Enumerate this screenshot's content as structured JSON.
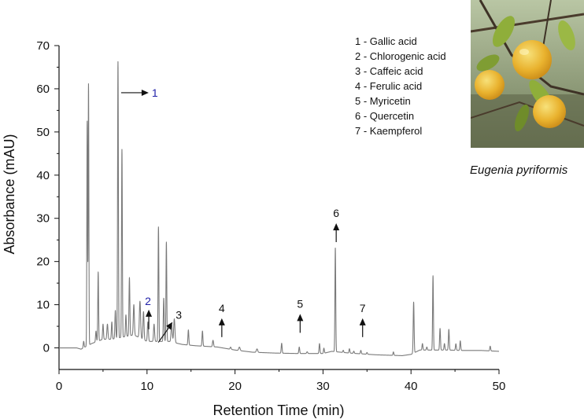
{
  "chart_data": {
    "type": "line",
    "xlabel": "Retention Time (min)",
    "ylabel": "Absorbance (mAU)",
    "xlim": [
      0,
      50
    ],
    "ylim": [
      -5,
      70
    ],
    "x_ticks": [
      0,
      10,
      20,
      30,
      40,
      50
    ],
    "y_ticks": [
      0,
      10,
      20,
      30,
      40,
      50,
      60,
      70
    ],
    "grid": false,
    "baseline": [
      [
        0,
        0
      ],
      [
        2.0,
        0
      ],
      [
        2.5,
        -0.3
      ],
      [
        3.7,
        1.0
      ],
      [
        5.0,
        2.0
      ],
      [
        6.0,
        2.0
      ],
      [
        8.5,
        3.0
      ],
      [
        10.0,
        1.5
      ],
      [
        12.5,
        1.5
      ],
      [
        14.0,
        0.8
      ],
      [
        15.5,
        0.5
      ],
      [
        18.0,
        0.2
      ],
      [
        20.0,
        -0.5
      ],
      [
        22.0,
        -1.0
      ],
      [
        24.5,
        -1.2
      ],
      [
        27.0,
        -1.3
      ],
      [
        30.0,
        -1.3
      ],
      [
        31.0,
        -0.8
      ],
      [
        33.0,
        -1.2
      ],
      [
        36.0,
        -1.6
      ],
      [
        39.0,
        -1.8
      ],
      [
        40.0,
        -1.5
      ],
      [
        41.0,
        -0.5
      ],
      [
        44.0,
        -0.5
      ],
      [
        46.0,
        -0.6
      ],
      [
        48.0,
        -0.6
      ],
      [
        50.0,
        -0.8
      ]
    ],
    "peaks": [
      {
        "x": 2.8,
        "y": 1.5,
        "w": 0.05
      },
      {
        "x": 3.2,
        "y": 52,
        "w": 0.04
      },
      {
        "x": 3.35,
        "y": 60.5,
        "w": 0.04
      },
      {
        "x": 4.2,
        "y": 2.5,
        "w": 0.05
      },
      {
        "x": 4.45,
        "y": 16,
        "w": 0.045
      },
      {
        "x": 5.0,
        "y": 3.5,
        "w": 0.05
      },
      {
        "x": 5.5,
        "y": 3.5,
        "w": 0.06
      },
      {
        "x": 6.0,
        "y": 4.0,
        "w": 0.05
      },
      {
        "x": 6.4,
        "y": 6.5,
        "w": 0.05
      },
      {
        "x": 6.7,
        "y": 64,
        "w": 0.045
      },
      {
        "x": 7.15,
        "y": 43.5,
        "w": 0.045
      },
      {
        "x": 7.6,
        "y": 5.0,
        "w": 0.05
      },
      {
        "x": 8.0,
        "y": 13.5,
        "w": 0.05
      },
      {
        "x": 8.5,
        "y": 7.0,
        "w": 0.06
      },
      {
        "x": 9.2,
        "y": 8.5,
        "w": 0.07
      },
      {
        "x": 9.6,
        "y": 6.5,
        "w": 0.06
      },
      {
        "x": 10.1,
        "y": 4.5,
        "w": 0.06
      },
      {
        "x": 10.8,
        "y": 4.0,
        "w": 0.06
      },
      {
        "x": 11.3,
        "y": 26.5,
        "w": 0.045
      },
      {
        "x": 11.9,
        "y": 10.0,
        "w": 0.05
      },
      {
        "x": 12.2,
        "y": 23,
        "w": 0.045
      },
      {
        "x": 12.8,
        "y": 4.0,
        "w": 0.07
      },
      {
        "x": 13.1,
        "y": 5.5,
        "w": 0.07
      },
      {
        "x": 14.7,
        "y": 3.5,
        "w": 0.05
      },
      {
        "x": 16.3,
        "y": 3.5,
        "w": 0.05
      },
      {
        "x": 17.5,
        "y": 1.5,
        "w": 0.06
      },
      {
        "x": 19.5,
        "y": 0.5,
        "w": 0.06
      },
      {
        "x": 20.5,
        "y": 0.8,
        "w": 0.08
      },
      {
        "x": 22.5,
        "y": 0.8,
        "w": 0.08
      },
      {
        "x": 25.3,
        "y": 2.3,
        "w": 0.05
      },
      {
        "x": 27.3,
        "y": 1.5,
        "w": 0.05
      },
      {
        "x": 28.2,
        "y": 0.4,
        "w": 0.06
      },
      {
        "x": 29.6,
        "y": 2.3,
        "w": 0.05
      },
      {
        "x": 30.1,
        "y": 1.2,
        "w": 0.05
      },
      {
        "x": 31.4,
        "y": 24,
        "w": 0.045
      },
      {
        "x": 32.3,
        "y": 0.5,
        "w": 0.05
      },
      {
        "x": 33.0,
        "y": 1.0,
        "w": 0.05
      },
      {
        "x": 33.5,
        "y": 0.5,
        "w": 0.05
      },
      {
        "x": 34.3,
        "y": 0.8,
        "w": 0.05
      },
      {
        "x": 35.0,
        "y": 0.4,
        "w": 0.05
      },
      {
        "x": 38.0,
        "y": 0.8,
        "w": 0.05
      },
      {
        "x": 40.3,
        "y": 11.8,
        "w": 0.05
      },
      {
        "x": 41.3,
        "y": 1.5,
        "w": 0.05
      },
      {
        "x": 41.8,
        "y": 0.7,
        "w": 0.05
      },
      {
        "x": 42.5,
        "y": 17.2,
        "w": 0.045
      },
      {
        "x": 43.3,
        "y": 5.0,
        "w": 0.05
      },
      {
        "x": 43.8,
        "y": 1.5,
        "w": 0.05
      },
      {
        "x": 44.3,
        "y": 4.8,
        "w": 0.05
      },
      {
        "x": 45.1,
        "y": 1.5,
        "w": 0.05
      },
      {
        "x": 45.6,
        "y": 2.2,
        "w": 0.05
      },
      {
        "x": 49.0,
        "y": 1.1,
        "w": 0.05
      }
    ],
    "peak_labels": [
      {
        "label": "1",
        "color": "#1f1fa8",
        "tip_x": 6.7,
        "tip_y": 64
      },
      {
        "label": "2",
        "color": "#1f1fa8",
        "tip_x": 10.2,
        "tip_y": 8.5
      },
      {
        "label": "3",
        "color": "#111111",
        "tip_x": 12.0,
        "tip_y": 6.0
      },
      {
        "label": "4",
        "color": "#111111",
        "tip_x": 18.5,
        "tip_y": 6.5
      },
      {
        "label": "5",
        "color": "#111111",
        "tip_x": 27.4,
        "tip_y": 7.5
      },
      {
        "label": "6",
        "color": "#111111",
        "tip_x": 31.5,
        "tip_y": 28.5
      },
      {
        "label": "7",
        "color": "#111111",
        "tip_x": 34.5,
        "tip_y": 6.5
      }
    ],
    "legend": {
      "placement": "top-right",
      "entries": [
        "1 - Gallic acid",
        "2 - Chlorogenic acid",
        "3 - Caffeic acid",
        "4 - Ferulic acid",
        "5 - Myricetin",
        "6 - Quercetin",
        "7 - Kaempferol"
      ]
    },
    "series_color": "#7a7a7a"
  },
  "photo": {
    "caption": "Eugenia pyriformis",
    "fruit_color": "#e9b22e",
    "leaf_color": "#8fae3a"
  }
}
